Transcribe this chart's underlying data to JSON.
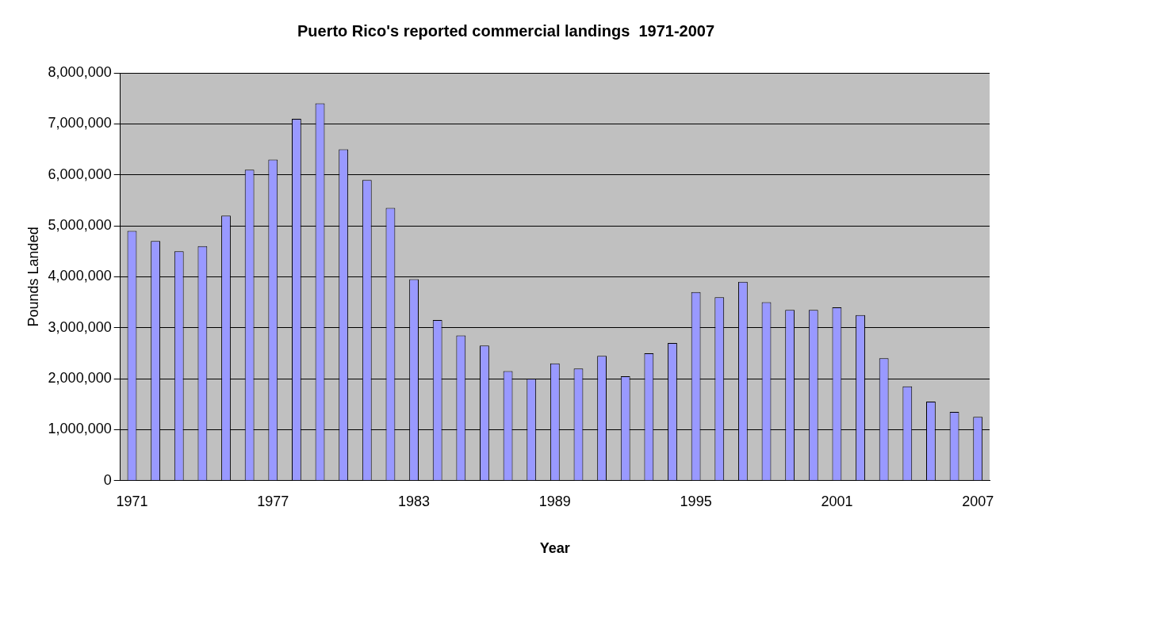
{
  "chart_data": {
    "type": "bar",
    "title": "Puerto Rico's reported commercial landings  1971-2007",
    "xlabel": "Year",
    "ylabel": "Pounds Landed",
    "categories": [
      "1971",
      null,
      null,
      null,
      null,
      null,
      "1977",
      null,
      null,
      null,
      null,
      null,
      "1983",
      null,
      null,
      null,
      null,
      null,
      "1989",
      null,
      null,
      null,
      null,
      null,
      "1995",
      null,
      null,
      null,
      null,
      null,
      "2001",
      null,
      null,
      null,
      null,
      null,
      "2007"
    ],
    "series": [
      {
        "color": "#9999ff",
        "values": [
          4900000,
          4700000,
          4500000,
          4600000,
          5200000,
          6100000,
          6300000,
          7100000,
          7400000,
          6500000,
          5900000,
          5350000,
          3950000,
          3150000,
          2850000,
          2650000,
          2150000,
          2000000,
          2300000,
          2200000,
          2450000,
          2050000,
          2500000,
          2700000,
          3700000,
          3600000,
          3900000,
          3500000,
          3350000,
          3350000,
          3400000,
          3250000,
          2400000,
          1850000,
          1550000,
          1350000,
          1250000
        ]
      }
    ],
    "ylim": [
      0,
      8000000
    ],
    "yticks": [
      {
        "value": 0,
        "label": "0"
      },
      {
        "value": 1000000,
        "label": "1,000,000"
      },
      {
        "value": 2000000,
        "label": "2,000,000"
      },
      {
        "value": 3000000,
        "label": "3,000,000"
      },
      {
        "value": 4000000,
        "label": "4,000,000"
      },
      {
        "value": 5000000,
        "label": "5,000,000"
      },
      {
        "value": 6000000,
        "label": "6,000,000"
      },
      {
        "value": 7000000,
        "label": "7,000,000"
      },
      {
        "value": 8000000,
        "label": "8,000,000"
      }
    ],
    "grid": "y",
    "legend": false
  }
}
